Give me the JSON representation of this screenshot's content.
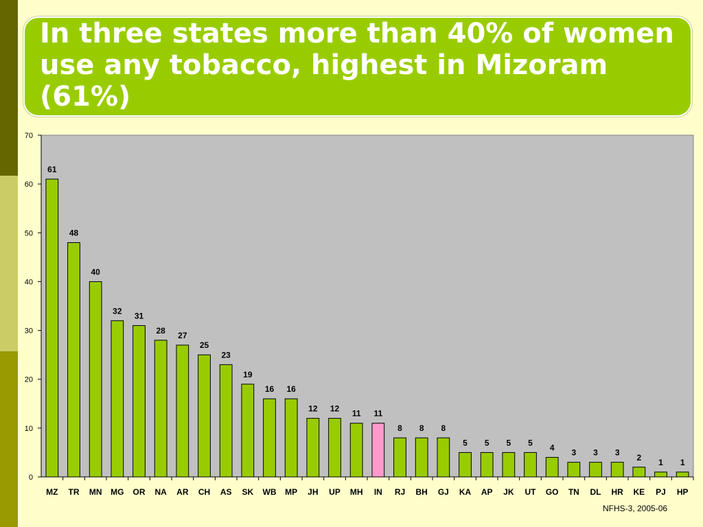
{
  "slide": {
    "title": "In three states more than 40% of women use any tobacco, highest in Mizoram (61%)",
    "source": "NFHS-3, 2005-06"
  },
  "colors": {
    "bar": "#99cc00",
    "highlight_bar": "#ff99cc",
    "plot_background": "#c0c0c0",
    "title_background": "#99cc00",
    "slide_background": "#ffffcc"
  },
  "chart_data": {
    "type": "bar",
    "categories": [
      "MZ",
      "TR",
      "MN",
      "MG",
      "OR",
      "NA",
      "AR",
      "CH",
      "AS",
      "SK",
      "WB",
      "MP",
      "JH",
      "UP",
      "MH",
      "IN",
      "RJ",
      "BH",
      "GJ",
      "KA",
      "AP",
      "JK",
      "UT",
      "GO",
      "TN",
      "DL",
      "HR",
      "KE",
      "PJ",
      "HP"
    ],
    "values": [
      61,
      48,
      40,
      32,
      31,
      28,
      27,
      25,
      23,
      19,
      16,
      16,
      12,
      12,
      11,
      11,
      8,
      8,
      8,
      5,
      5,
      5,
      5,
      4,
      3,
      3,
      3,
      2,
      1,
      1
    ],
    "highlight_category": "IN",
    "ylim": [
      0,
      70
    ],
    "yticks": [
      0,
      10,
      20,
      30,
      40,
      50,
      60,
      70
    ],
    "data_labels": true,
    "grid": false,
    "legend": "none"
  }
}
